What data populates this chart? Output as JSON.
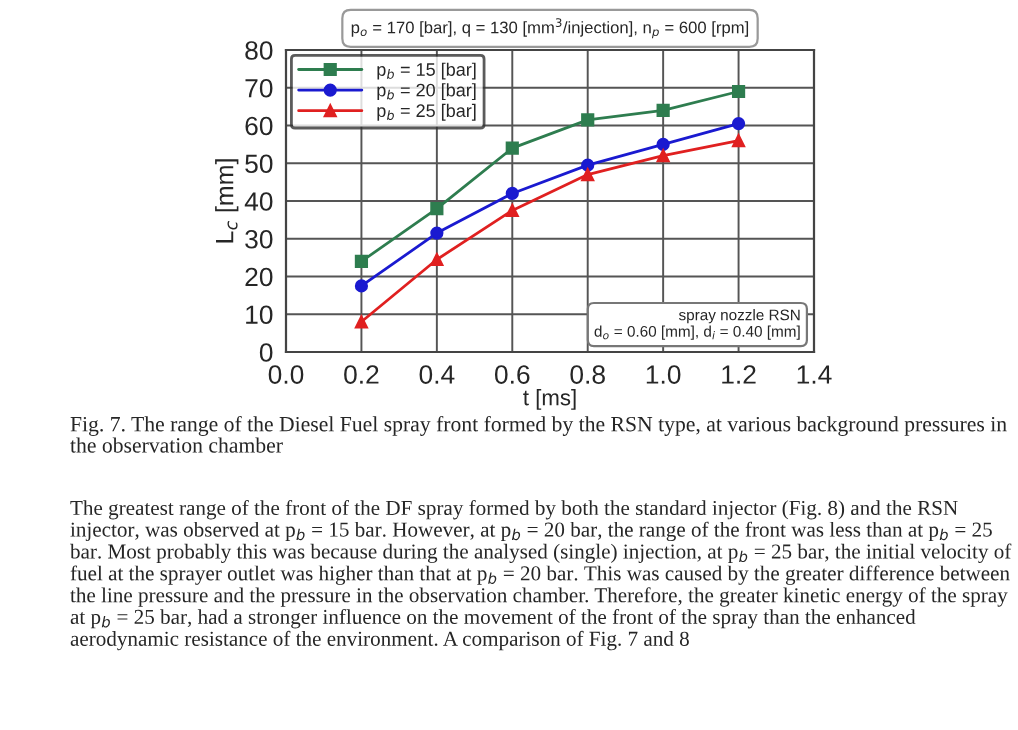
{
  "chart_data": {
    "type": "line",
    "title": "p$_{o}$ = 170 [bar], q = 130 [mm$^{3}$/injection], n$_{p}$ = 600 [rpm]",
    "xlabel": "t [ms]",
    "ylabel": "L$_{c}$ [mm]",
    "x": [
      0.2,
      0.4,
      0.6,
      0.8,
      1.0,
      1.2
    ],
    "series": [
      {
        "name": "p$_{b}$ = 15 [bar]",
        "color": "#2e7d4f",
        "marker": "square",
        "values": [
          24,
          38,
          54,
          61.5,
          64,
          69
        ]
      },
      {
        "name": "p$_{b}$ = 20 [bar]",
        "color": "#1a1ad0",
        "marker": "circle",
        "values": [
          17.5,
          31.5,
          42,
          49.5,
          55,
          60.5
        ]
      },
      {
        "name": "p$_{b}$ = 25 [bar]",
        "color": "#e02020",
        "marker": "triangle",
        "values": [
          8,
          24.5,
          37.5,
          47,
          52,
          56
        ]
      }
    ],
    "xlim": [
      0.0,
      1.4
    ],
    "xticks": [
      {
        "value": 0,
        "label": "0.0"
      },
      0.2,
      0.4,
      0.6,
      0.8,
      {
        "value": 1,
        "label": "1.0"
      },
      1.2,
      1.4
    ],
    "ylim": [
      0,
      80
    ],
    "yticks": [
      0,
      10,
      20,
      30,
      40,
      50,
      60,
      70,
      80
    ],
    "grid": true,
    "legend": "top left",
    "line_style": "solid",
    "annotations": [
      "spray nozzle RSN\nd$_{o}$ = 0.60 [mm], d$_{i}$ = 0.40 [mm]",
      "Fig. 7. The range of the Diesel Fuel spray front formed by the RSN type, at various background pressures in the observation chamber",
      "The greatest range of the front of the DF spray formed by both the standard injector (Fig. 8) and the RSN injector, was observed at p$_{b}$ = 15 bar. However, at p$_{b}$ = 20 bar, the range of the front was less than at p$_{b}$ = 25 bar. Most probably this was because during the analysed (single) injection, at p$_{b}$ = 25 bar, the initial velocity of fuel at the sprayer outlet was higher than that at p$_{b}$ = 20 bar. This was caused by the greater difference between the line pressure and the pressure in the observation chamber. Therefore, the greater kinetic energy of the spray at p$_{b}$ = 25 bar, had a stronger influence on the movement of the front of the spray than the enhanced aerodynamic resistance of the environment. A comparison of Fig. 7 and 8"
    ]
  }
}
